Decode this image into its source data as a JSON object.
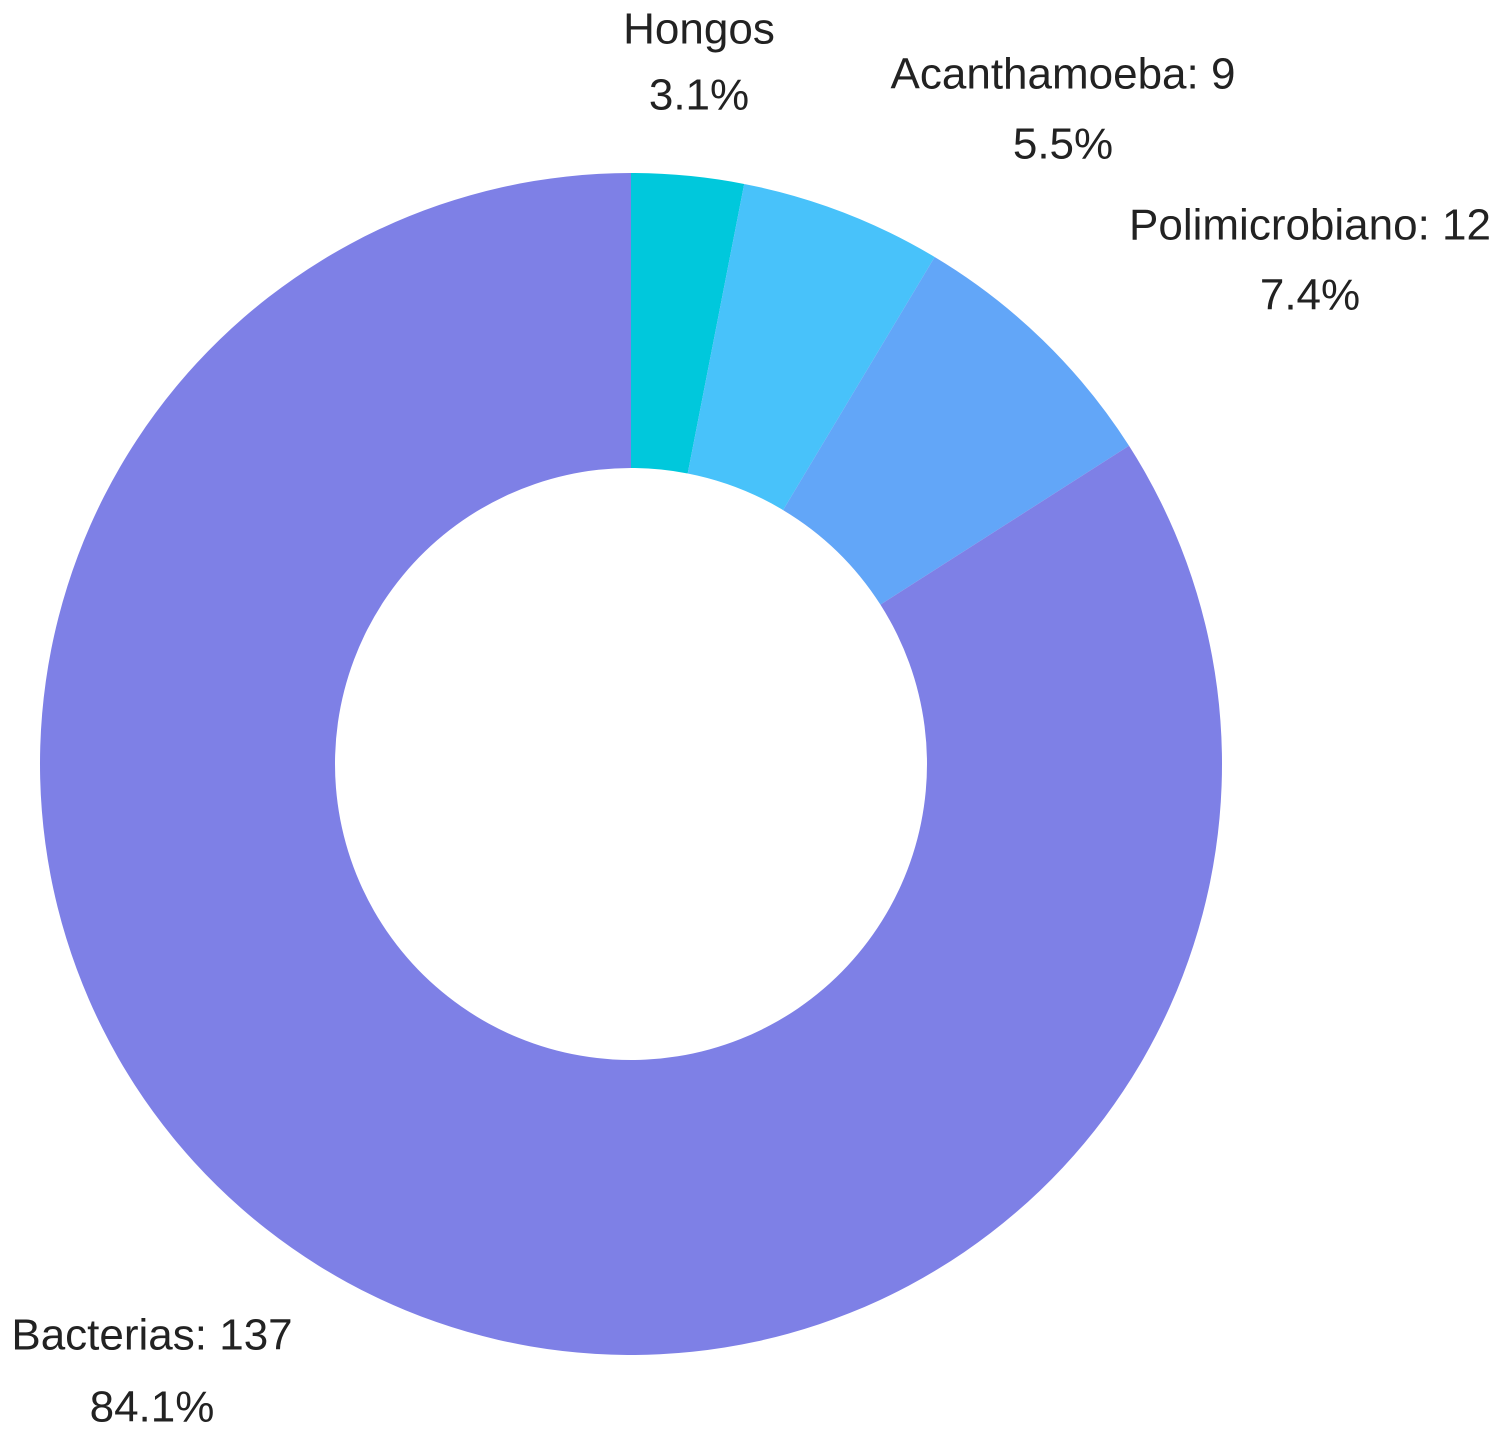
{
  "chart_data": {
    "type": "pie",
    "variant": "donut",
    "title": "",
    "slices": [
      {
        "name": "Hongos",
        "label": "Hongos",
        "percent_label": "3.1%",
        "value": 5,
        "percent": 3.1,
        "color": "#00C8DC"
      },
      {
        "name": "Acanthamoeba",
        "label": "Acanthamoeba: 9",
        "percent_label": "5.5%",
        "value": 9,
        "percent": 5.5,
        "color": "#48C2FA"
      },
      {
        "name": "Polimicrobiano",
        "label": "Polimicrobiano: 12",
        "percent_label": "7.4%",
        "value": 12,
        "percent": 7.4,
        "color": "#62A6F8"
      },
      {
        "name": "Bacterias",
        "label": "Bacterias: 137",
        "percent_label": "84.1%",
        "value": 137,
        "percent": 84.1,
        "color": "#7E80E6"
      }
    ],
    "start_angle": "top, clockwise",
    "legend": "none",
    "background": "#FFFFFF"
  }
}
